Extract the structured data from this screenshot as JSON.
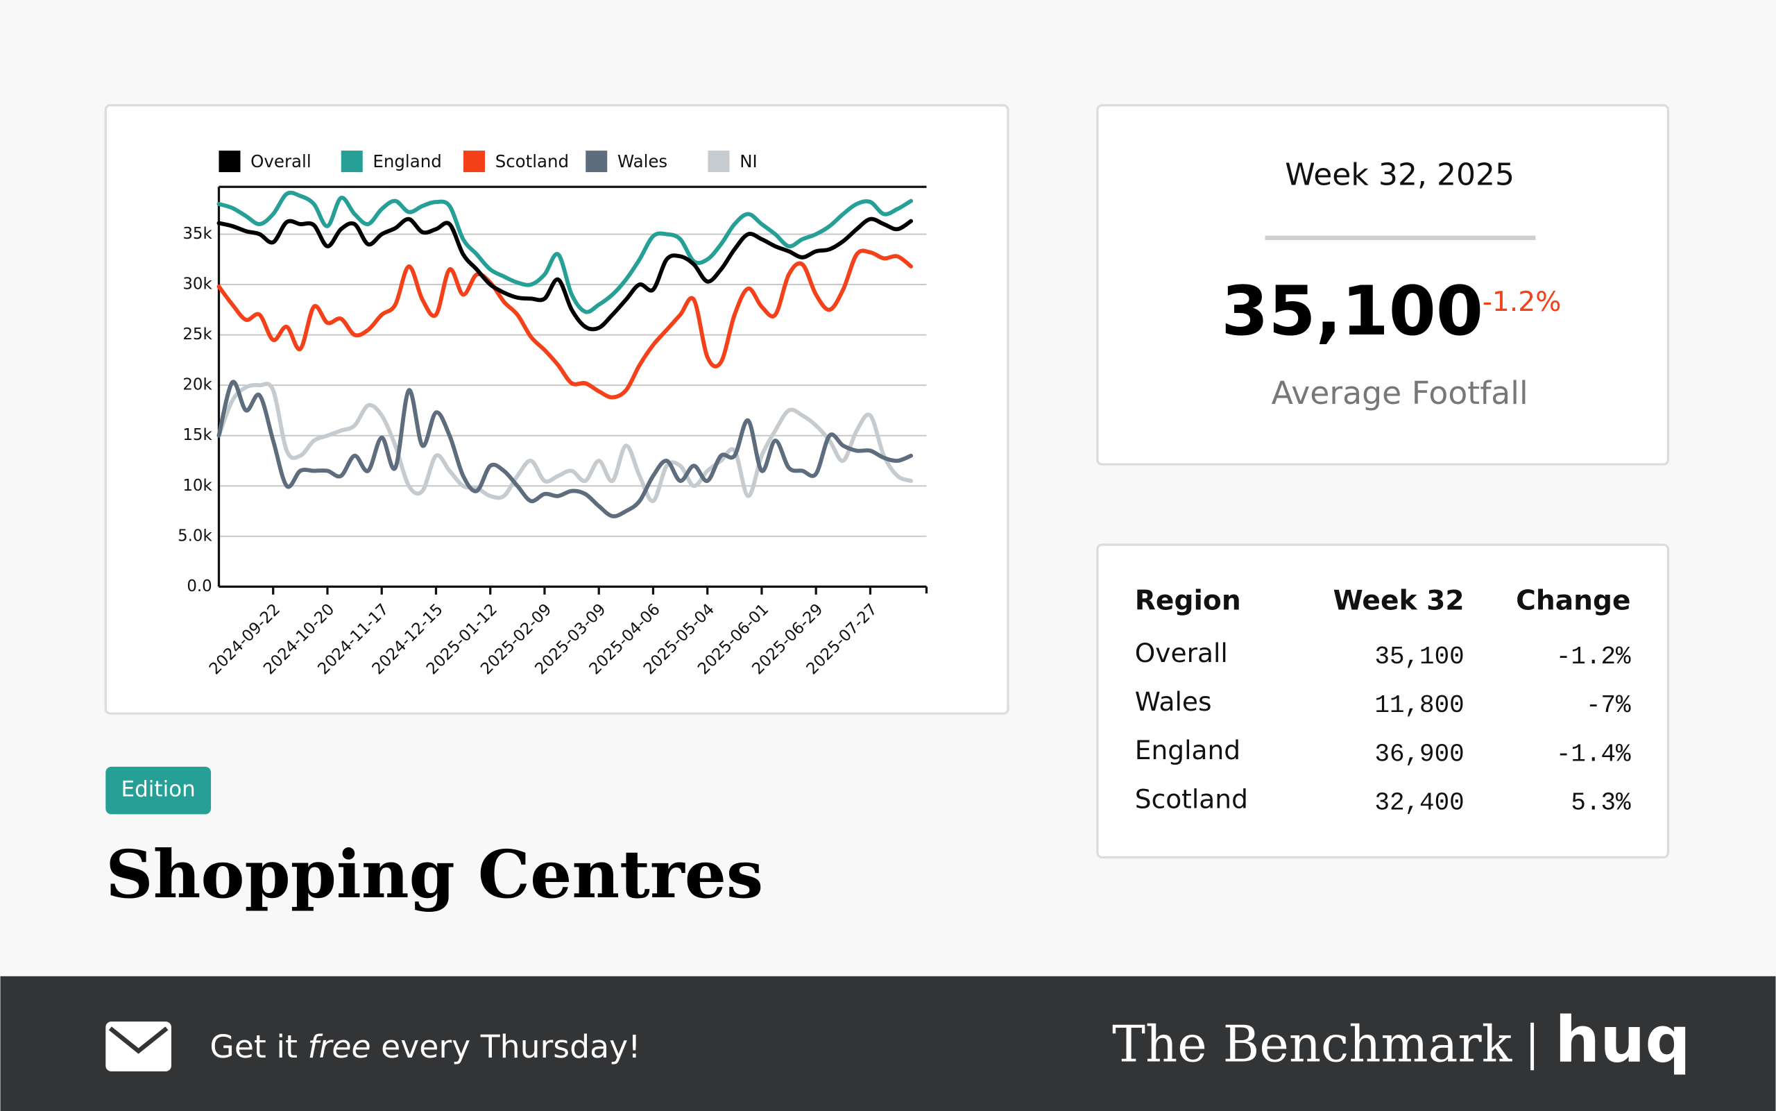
{
  "chart_data": {
    "type": "line",
    "x": [
      "2024-08-25",
      "2024-09-01",
      "2024-09-08",
      "2024-09-15",
      "2024-09-22",
      "2024-09-29",
      "2024-10-06",
      "2024-10-13",
      "2024-10-20",
      "2024-10-27",
      "2024-11-03",
      "2024-11-10",
      "2024-11-17",
      "2024-11-24",
      "2024-12-01",
      "2024-12-08",
      "2024-12-15",
      "2024-12-22",
      "2024-12-29",
      "2025-01-05",
      "2025-01-12",
      "2025-01-19",
      "2025-01-26",
      "2025-02-02",
      "2025-02-09",
      "2025-02-16",
      "2025-02-23",
      "2025-03-02",
      "2025-03-09",
      "2025-03-16",
      "2025-03-23",
      "2025-03-30",
      "2025-04-06",
      "2025-04-13",
      "2025-04-20",
      "2025-04-27",
      "2025-05-04",
      "2025-05-11",
      "2025-05-18",
      "2025-05-25",
      "2025-06-01",
      "2025-06-08",
      "2025-06-15",
      "2025-06-22",
      "2025-06-29",
      "2025-07-06",
      "2025-07-13",
      "2025-07-20",
      "2025-07-27",
      "2025-08-03",
      "2025-08-10",
      "2025-08-17"
    ],
    "series": [
      {
        "name": "Overall",
        "color": "#000000",
        "values": [
          36100,
          35800,
          35300,
          35000,
          34200,
          36200,
          36000,
          35900,
          33800,
          35500,
          36000,
          34000,
          35000,
          35600,
          36500,
          35200,
          35500,
          36000,
          33000,
          31500,
          30000,
          29200,
          28700,
          28600,
          28600,
          30500,
          27500,
          25800,
          25700,
          27000,
          28500,
          30000,
          29500,
          32500,
          32800,
          32000,
          30300,
          31500,
          33500,
          35000,
          34500,
          33800,
          33300,
          32700,
          33300,
          33500,
          34300,
          35500,
          36500,
          36000,
          35500,
          36300
        ]
      },
      {
        "name": "England",
        "color": "#26a096",
        "values": [
          38000,
          37600,
          36800,
          36000,
          37000,
          39000,
          38800,
          38000,
          35800,
          38600,
          37000,
          36000,
          37500,
          38300,
          37200,
          37800,
          38200,
          37800,
          34500,
          33000,
          31500,
          30800,
          30200,
          30000,
          31000,
          33000,
          29000,
          27300,
          28000,
          29000,
          30500,
          32500,
          34800,
          35000,
          34500,
          32300,
          32500,
          34000,
          36000,
          37000,
          36000,
          35000,
          33800,
          34500,
          35000,
          35800,
          37000,
          38000,
          38200,
          37000,
          37500,
          38300
        ]
      },
      {
        "name": "Scotland",
        "color": "#f5411a",
        "values": [
          29800,
          28000,
          26500,
          27000,
          24500,
          25800,
          23600,
          27800,
          26200,
          26600,
          25000,
          25500,
          27000,
          28000,
          31800,
          28500,
          27000,
          31500,
          29000,
          31000,
          30200,
          28300,
          27000,
          24800,
          23500,
          22000,
          20200,
          20200,
          19400,
          18800,
          19500,
          22000,
          24000,
          25500,
          27000,
          28500,
          22800,
          22300,
          27000,
          29600,
          27800,
          27000,
          31000,
          32000,
          29000,
          27500,
          29500,
          33000,
          33200,
          32600,
          32800,
          31800
        ]
      },
      {
        "name": "Wales",
        "color": "#5d6d7e",
        "values": [
          15000,
          20300,
          17500,
          19000,
          14500,
          10000,
          11500,
          11500,
          11500,
          11000,
          13000,
          11500,
          14800,
          11800,
          19500,
          14000,
          17300,
          15000,
          11000,
          9500,
          12000,
          11500,
          10000,
          8500,
          9200,
          9000,
          9500,
          9200,
          8000,
          7000,
          7500,
          8500,
          11000,
          12500,
          10500,
          12000,
          10500,
          13000,
          13000,
          16500,
          11500,
          14500,
          11800,
          11500,
          11200,
          15000,
          14000,
          13500,
          13500,
          12800,
          12500,
          13000
        ]
      },
      {
        "name": "NI",
        "color": "#c6cbcf",
        "values": [
          15000,
          18500,
          19800,
          20000,
          19500,
          13500,
          13000,
          14500,
          15000,
          15500,
          16000,
          18000,
          17000,
          14000,
          10000,
          9500,
          13000,
          11500,
          10000,
          9800,
          9000,
          9000,
          11000,
          12500,
          10500,
          11000,
          11500,
          10500,
          12500,
          10500,
          14000,
          11000,
          8500,
          12000,
          12000,
          10000,
          11500,
          12500,
          13500,
          9000,
          13000,
          15500,
          17500,
          17000,
          16000,
          14500,
          12500,
          15500,
          17000,
          13000,
          11000,
          10500
        ]
      }
    ],
    "xlim": [
      "2024-08-25",
      "2025-08-25"
    ],
    "xticks": [
      "2024-09-22",
      "2024-10-20",
      "2024-11-17",
      "2024-12-15",
      "2025-01-12",
      "2025-02-09",
      "2025-03-09",
      "2025-04-06",
      "2025-05-04",
      "2025-06-01",
      "2025-06-29",
      "2025-07-27"
    ],
    "ylim": [
      0,
      39700
    ],
    "yticks": [
      {
        "value": 0,
        "label": "0.0"
      },
      {
        "value": 5000,
        "label": "5.0k"
      },
      {
        "value": 10000,
        "label": "10k"
      },
      {
        "value": 15000,
        "label": "15k"
      },
      {
        "value": 20000,
        "label": "20k"
      },
      {
        "value": 25000,
        "label": "25k"
      },
      {
        "value": 30000,
        "label": "30k"
      },
      {
        "value": 35000,
        "label": "35k"
      }
    ],
    "grid": true,
    "legend": "top-left"
  },
  "kpi": {
    "period": "Week 32, 2025",
    "value": "35,100",
    "change": "-1.2%",
    "label": "Average Footfall"
  },
  "table": {
    "header": [
      "Region",
      "Week 32",
      "Change"
    ],
    "rows": [
      [
        "Overall",
        "35,100",
        "-1.2%"
      ],
      [
        "Wales",
        "11,800",
        "-7%"
      ],
      [
        "England",
        "36,900",
        "-1.4%"
      ],
      [
        "Scotland",
        "32,400",
        "5.3%"
      ]
    ]
  },
  "edition_badge": "Edition",
  "title": "Shopping Centres",
  "footer": {
    "cta_parts": [
      "Get it ",
      "free",
      " every Thursday!"
    ],
    "brand": "The Benchmark",
    "logo": "huq"
  }
}
